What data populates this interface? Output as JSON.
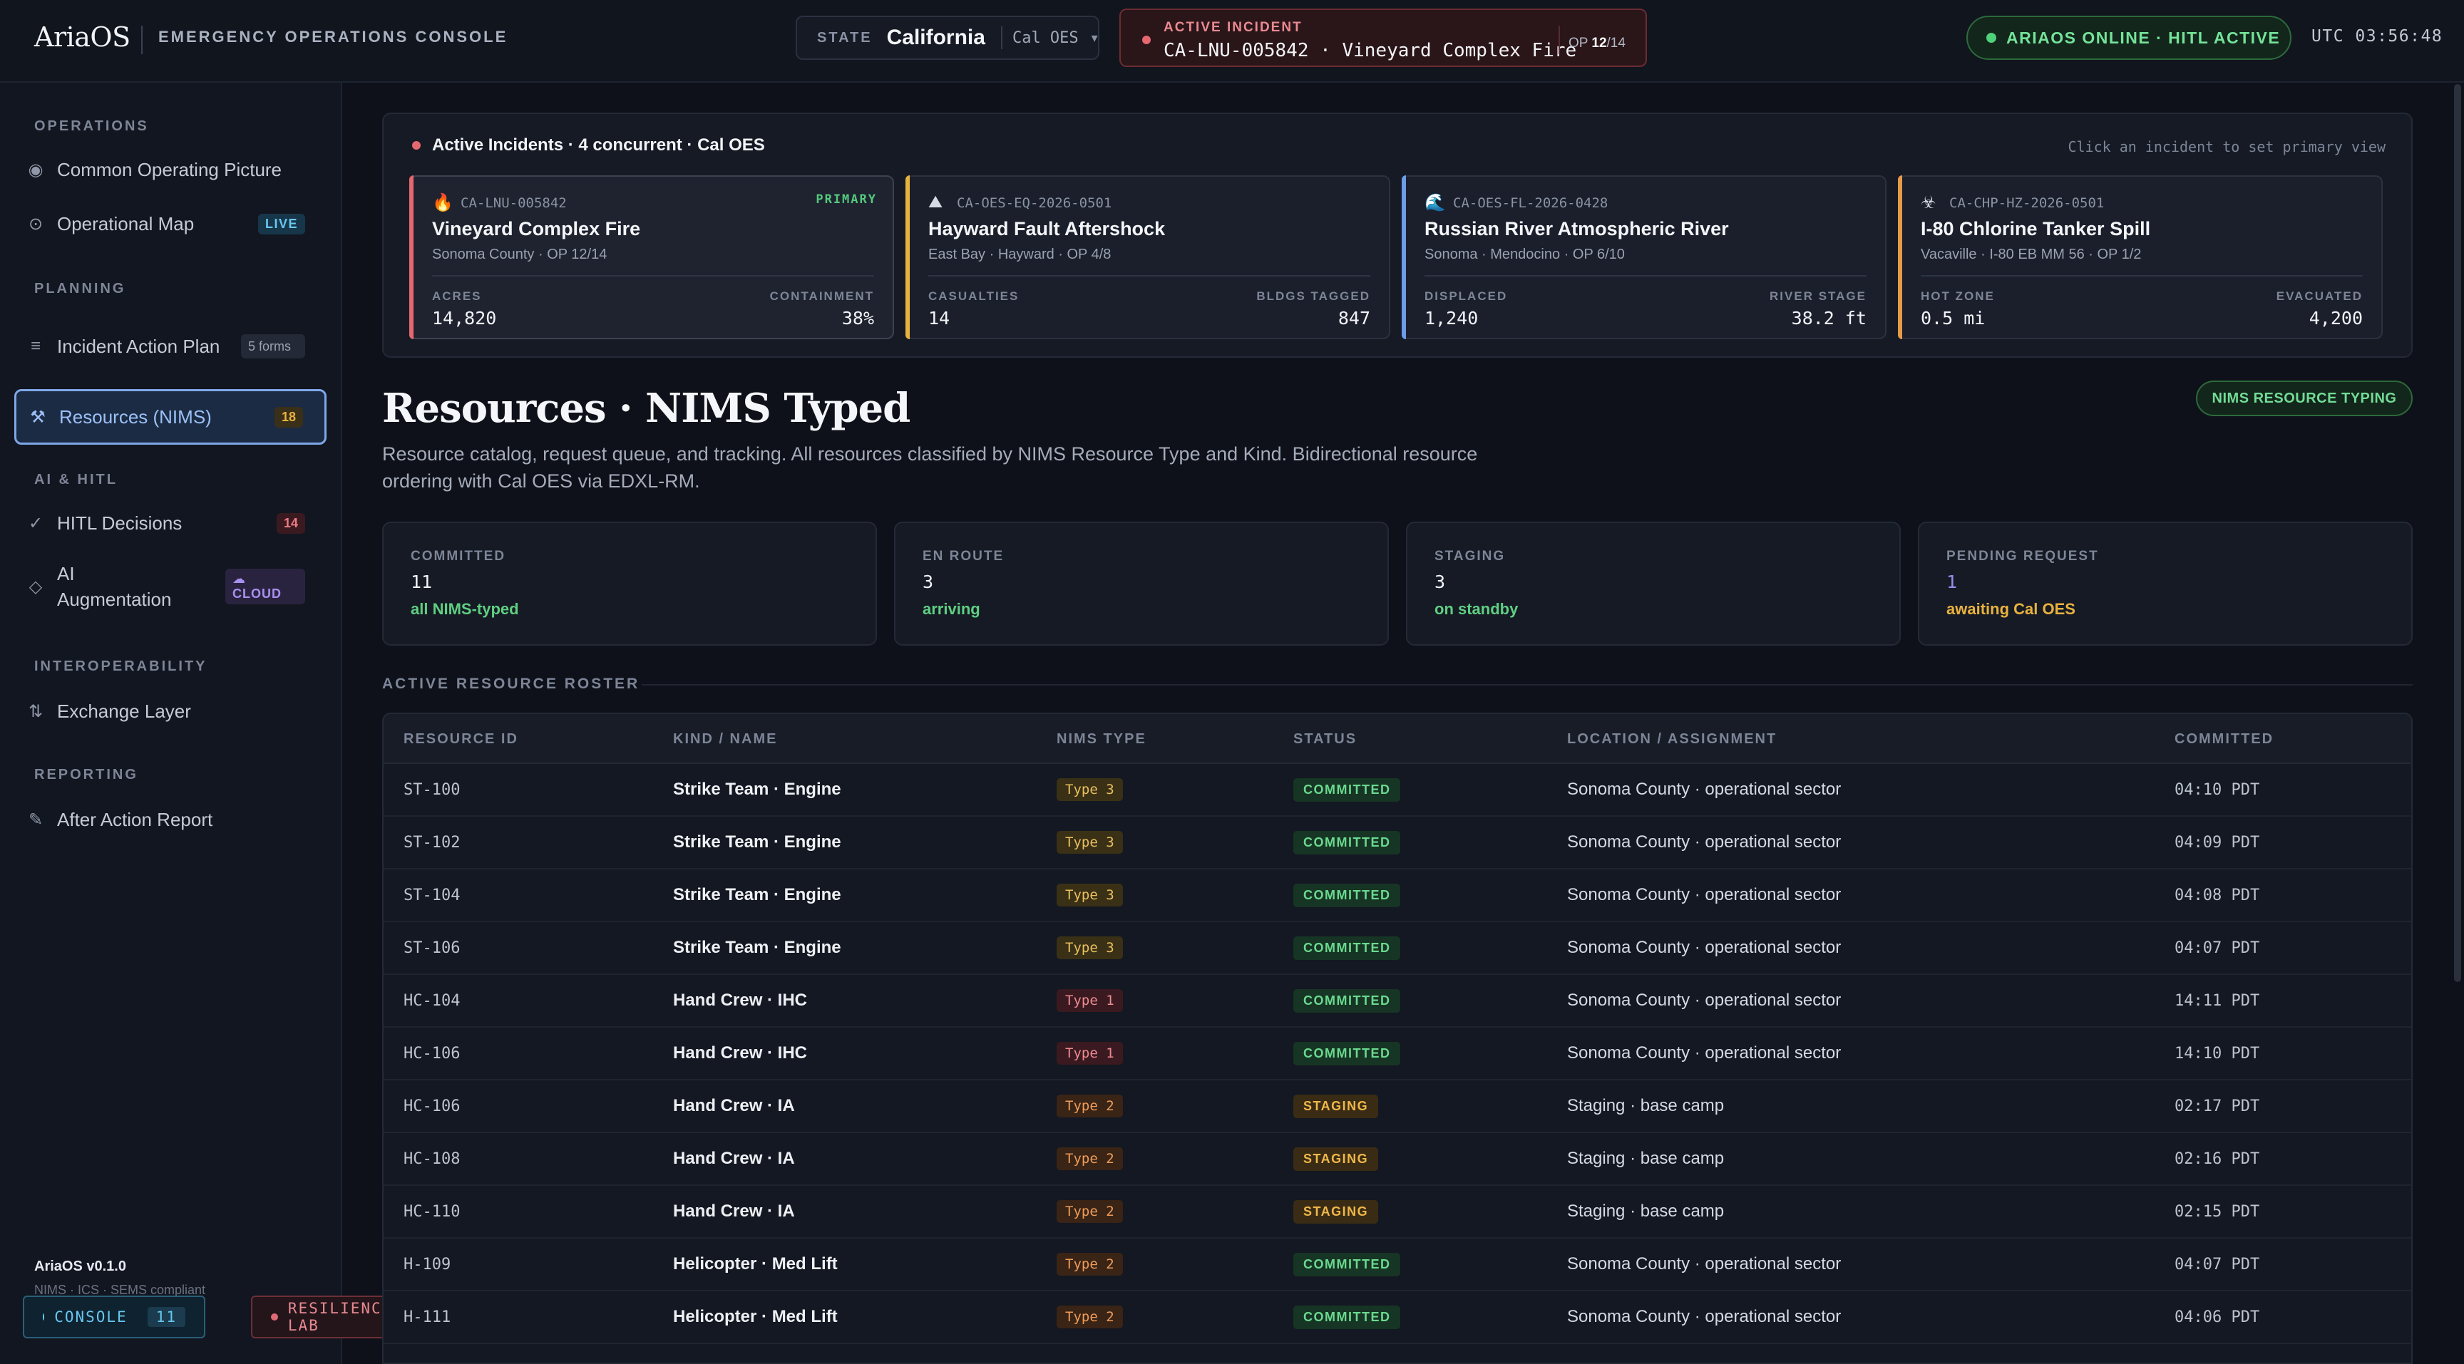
{
  "header": {
    "brand": "AriaOS",
    "subtitle": "EMERGENCY OPERATIONS CONSOLE",
    "state_label": "STATE",
    "state_value": "California",
    "state_agency": "Cal OES",
    "state_chevron": "▾",
    "incident_label": "ACTIVE INCIDENT",
    "incident_name": "CA-LNU-005842 · Vineyard Complex Fire",
    "op_prefix": "OP",
    "op_current": "12",
    "op_total": "/14",
    "status": "ARIAOS ONLINE · HITL ACTIVE",
    "utc": "UTC 03:56:48"
  },
  "sidebar": {
    "sections": {
      "operations": "OPERATIONS",
      "planning": "PLANNING",
      "ai_hitl": "AI & HITL",
      "interoperability": "INTEROPERABILITY",
      "reporting": "REPORTING"
    },
    "items": [
      {
        "label": "Common Operating Picture",
        "icon": "◉",
        "badge": ""
      },
      {
        "label": "Operational Map",
        "icon": "⊙",
        "badge": "LIVE"
      },
      {
        "label": "Incident Action Plan",
        "icon": "≡",
        "badge": "5 forms"
      },
      {
        "label": "Resources (NIMS)",
        "icon": "⚒",
        "badge": "18"
      },
      {
        "label": "HITL Decisions",
        "icon": "✓",
        "badge": "14"
      },
      {
        "label": "AI Augmentation",
        "icon": "◇",
        "badge": "CLOUD"
      },
      {
        "label": "Exchange Layer",
        "icon": "⇅",
        "badge": ""
      },
      {
        "label": "After Action Report",
        "icon": "✎",
        "badge": ""
      }
    ],
    "footer_title": "AriaOS v0.1.0",
    "footer_sub": "NIMS · ICS · SEMS compliant",
    "console_label": "CONSOLE",
    "console_count": "11",
    "lab_label": "RESILIENCE LAB"
  },
  "incidents": {
    "title": "Active Incidents · 4 concurrent · Cal OES",
    "hint": "Click an incident to set primary view",
    "cards": [
      {
        "emoji": "🔥",
        "code": "CA-LNU-005842",
        "tag": "PRIMARY",
        "title": "Vineyard Complex Fire",
        "sub": "Sonoma County · OP 12/14",
        "l_label": "ACRES",
        "l_val": "14,820",
        "r_label": "CONTAINMENT",
        "r_val": "38%",
        "accent": "#e5676f"
      },
      {
        "emoji": "⛰",
        "code": "CA-OES-EQ-2026-0501",
        "tag": "",
        "title": "Hayward Fault Aftershock",
        "sub": "East Bay · Hayward · OP 4/8",
        "l_label": "CASUALTIES",
        "l_val": "14",
        "r_label": "BLDGS TAGGED",
        "r_val": "847",
        "accent": "#e6b33e"
      },
      {
        "emoji": "🌊",
        "code": "CA-OES-FL-2026-0428",
        "tag": "",
        "title": "Russian River Atmospheric River",
        "sub": "Sonoma · Mendocino · OP 6/10",
        "l_label": "DISPLACED",
        "l_val": "1,240",
        "r_label": "RIVER STAGE",
        "r_val": "38.2 ft",
        "accent": "#6d9ce8"
      },
      {
        "emoji": "☣",
        "code": "CA-CHP-HZ-2026-0501",
        "tag": "",
        "title": "I-80 Chlorine Tanker Spill",
        "sub": "Vacaville · I-80 EB MM 56 · OP 1/2",
        "l_label": "HOT ZONE",
        "l_val": "0.5 mi",
        "r_label": "EVACUATED",
        "r_val": "4,200",
        "accent": "#e69a4a"
      }
    ]
  },
  "page": {
    "title": "Resources · NIMS Typed",
    "description": "Resource catalog, request queue, and tracking. All resources classified by NIMS Resource Type and Kind. Bidirectional resource ordering with Cal OES via EDXL-RM.",
    "typing_pill": "NIMS RESOURCE TYPING"
  },
  "stats": [
    {
      "label": "COMMITTED",
      "value": "11",
      "sub": "all NIMS-typed",
      "color": "#5fcf82"
    },
    {
      "label": "EN ROUTE",
      "value": "3",
      "sub": "arriving",
      "color": "#5fcf82"
    },
    {
      "label": "STAGING",
      "value": "3",
      "sub": "on standby",
      "color": "#5fcf82"
    },
    {
      "label": "PENDING REQUEST",
      "value": "1",
      "sub": "awaiting Cal OES",
      "color": "#e9b23f",
      "value_color": "#9a8cf0"
    }
  ],
  "roster": {
    "label": "ACTIVE RESOURCE ROSTER",
    "columns": [
      "RESOURCE ID",
      "KIND / NAME",
      "NIMS TYPE",
      "STATUS",
      "LOCATION / ASSIGNMENT",
      "COMMITTED"
    ],
    "rows": [
      {
        "id": "ST-100",
        "name": "Strike Team · Engine",
        "type": "Type 3",
        "status": "COMMITTED",
        "location": "Sonoma County · operational sector",
        "time": "04:10 PDT"
      },
      {
        "id": "ST-102",
        "name": "Strike Team · Engine",
        "type": "Type 3",
        "status": "COMMITTED",
        "location": "Sonoma County · operational sector",
        "time": "04:09 PDT"
      },
      {
        "id": "ST-104",
        "name": "Strike Team · Engine",
        "type": "Type 3",
        "status": "COMMITTED",
        "location": "Sonoma County · operational sector",
        "time": "04:08 PDT"
      },
      {
        "id": "ST-106",
        "name": "Strike Team · Engine",
        "type": "Type 3",
        "status": "COMMITTED",
        "location": "Sonoma County · operational sector",
        "time": "04:07 PDT"
      },
      {
        "id": "HC-104",
        "name": "Hand Crew · IHC",
        "type": "Type 1",
        "status": "COMMITTED",
        "location": "Sonoma County · operational sector",
        "time": "14:11 PDT"
      },
      {
        "id": "HC-106",
        "name": "Hand Crew · IHC",
        "type": "Type 1",
        "status": "COMMITTED",
        "location": "Sonoma County · operational sector",
        "time": "14:10 PDT"
      },
      {
        "id": "HC-106",
        "name": "Hand Crew · IA",
        "type": "Type 2",
        "status": "STAGING",
        "location": "Staging · base camp",
        "time": "02:17 PDT"
      },
      {
        "id": "HC-108",
        "name": "Hand Crew · IA",
        "type": "Type 2",
        "status": "STAGING",
        "location": "Staging · base camp",
        "time": "02:16 PDT"
      },
      {
        "id": "HC-110",
        "name": "Hand Crew · IA",
        "type": "Type 2",
        "status": "STAGING",
        "location": "Staging · base camp",
        "time": "02:15 PDT"
      },
      {
        "id": "H-109",
        "name": "Helicopter · Med Lift",
        "type": "Type 2",
        "status": "COMMITTED",
        "location": "Sonoma County · operational sector",
        "time": "04:07 PDT"
      },
      {
        "id": "H-111",
        "name": "Helicopter · Med Lift",
        "type": "Type 2",
        "status": "COMMITTED",
        "location": "Sonoma County · operational sector",
        "time": "04:06 PDT"
      }
    ]
  },
  "colors": {
    "type1_bg": "#3a1a20",
    "type1_fg": "#ef8a92",
    "type2_bg": "#3a2416",
    "type2_fg": "#ef9d5a",
    "type3_bg": "#3a3016",
    "type3_fg": "#e9c060",
    "committed_bg": "#173524",
    "committed_fg": "#6ad98f",
    "staging_bg": "#3a2c14",
    "staging_fg": "#f0b74a"
  }
}
